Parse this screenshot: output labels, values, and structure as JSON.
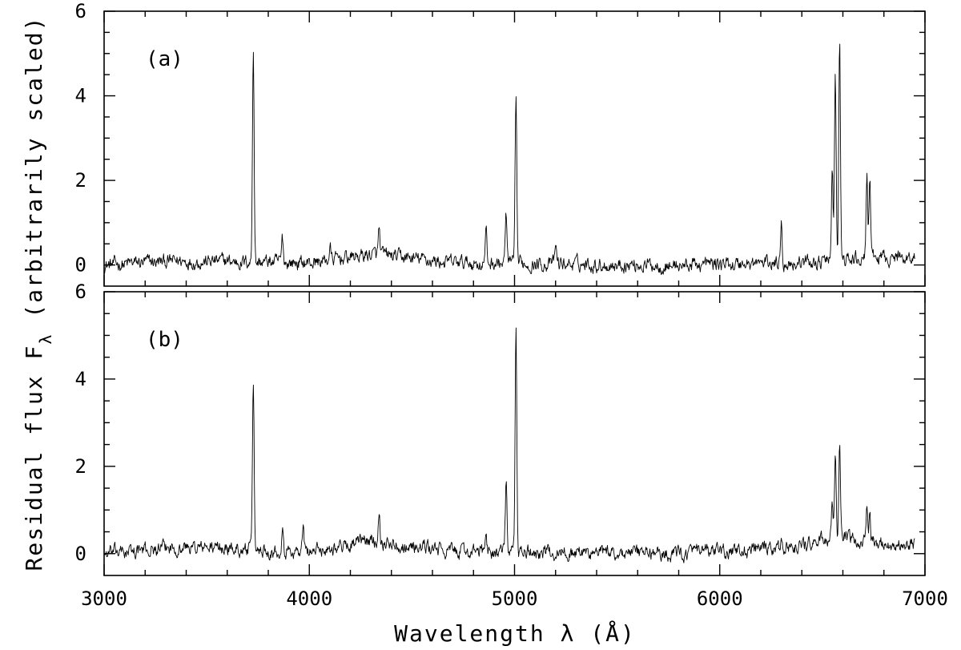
{
  "chart_data": {
    "type": "line",
    "xlabel": "Wavelength λ (Å)",
    "ylabel": "Residual flux F_λ (arbitrarily scaled)",
    "ylabel_parts": {
      "main": "Residual flux F",
      "subscript": "λ",
      "suffix": " (arbitrarily scaled)"
    },
    "xlim": [
      3000,
      7000
    ],
    "x_ticks": [
      3000,
      4000,
      5000,
      6000,
      7000
    ],
    "grid": false,
    "panels": [
      {
        "label": "(a)",
        "ylim": [
          -0.5,
          6
        ],
        "y_ticks": [
          0,
          2,
          4,
          6
        ],
        "data_range": [
          3000,
          6950
        ],
        "noise_amp": 0.16,
        "continuum": [
          [
            3000,
            0.0
          ],
          [
            3400,
            0.1
          ],
          [
            4000,
            0.05
          ],
          [
            4300,
            0.25
          ],
          [
            4700,
            0.05
          ],
          [
            5800,
            0.0
          ],
          [
            6300,
            0.05
          ],
          [
            6600,
            0.1
          ],
          [
            6950,
            0.2
          ]
        ],
        "lines": [
          {
            "wavelength": 3727,
            "peak": 5.1
          },
          {
            "wavelength": 3869,
            "peak": 0.55
          },
          {
            "wavelength": 4101,
            "peak": 0.3
          },
          {
            "wavelength": 4340,
            "peak": 0.6
          },
          {
            "wavelength": 4861,
            "peak": 0.75
          },
          {
            "wavelength": 4959,
            "peak": 1.15
          },
          {
            "wavelength": 5007,
            "peak": 3.8
          },
          {
            "wavelength": 5200,
            "peak": 0.45
          },
          {
            "wavelength": 6300,
            "peak": 1.05
          },
          {
            "wavelength": 6548,
            "peak": 2.2
          },
          {
            "wavelength": 6563,
            "peak": 4.4
          },
          {
            "wavelength": 6584,
            "peak": 5.2
          },
          {
            "wavelength": 6717,
            "peak": 2.0
          },
          {
            "wavelength": 6731,
            "peak": 1.9
          }
        ]
      },
      {
        "label": "(b)",
        "ylim": [
          -0.5,
          6
        ],
        "y_ticks": [
          0,
          2,
          4,
          6
        ],
        "data_range": [
          3000,
          6950
        ],
        "noise_amp": 0.15,
        "continuum": [
          [
            3000,
            0.0
          ],
          [
            3400,
            0.15
          ],
          [
            4000,
            0.05
          ],
          [
            4300,
            0.3
          ],
          [
            4700,
            0.05
          ],
          [
            5800,
            0.0
          ],
          [
            6300,
            0.1
          ],
          [
            6500,
            0.3
          ],
          [
            6600,
            0.3
          ],
          [
            6950,
            0.2
          ]
        ],
        "lines": [
          {
            "wavelength": 3727,
            "peak": 3.75
          },
          {
            "wavelength": 3869,
            "peak": 0.7
          },
          {
            "wavelength": 3970,
            "peak": 0.5
          },
          {
            "wavelength": 4340,
            "peak": 0.75
          },
          {
            "wavelength": 4861,
            "peak": 0.45
          },
          {
            "wavelength": 4959,
            "peak": 1.55
          },
          {
            "wavelength": 5007,
            "peak": 5.1
          },
          {
            "wavelength": 6300,
            "peak": 0.3
          },
          {
            "wavelength": 6548,
            "peak": 1.0
          },
          {
            "wavelength": 6563,
            "peak": 1.95
          },
          {
            "wavelength": 6584,
            "peak": 2.2
          },
          {
            "wavelength": 6717,
            "peak": 0.75
          },
          {
            "wavelength": 6731,
            "peak": 0.7
          }
        ]
      }
    ]
  }
}
